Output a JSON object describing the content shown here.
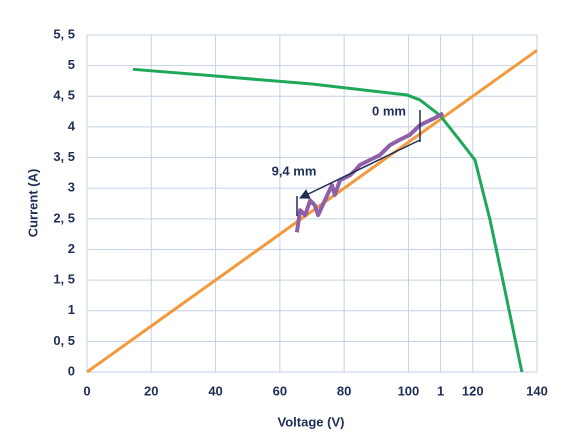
{
  "chart_data": {
    "type": "line",
    "xlabel": "Voltage (V)",
    "ylabel": "Current (A)",
    "xlim": [
      0,
      140
    ],
    "ylim": [
      0,
      5.5
    ],
    "xticks": [
      0,
      20,
      40,
      60,
      80,
      100,
      {
        "value": 110,
        "label": "1"
      },
      120,
      140
    ],
    "yticks": [
      0,
      {
        "value": 0.5,
        "label": "0, 5"
      },
      1,
      {
        "value": 1.5,
        "label": "1, 5"
      },
      2,
      {
        "value": 2.5,
        "label": "2, 5"
      },
      3,
      {
        "value": 3.5,
        "label": "3, 5"
      },
      4,
      {
        "value": 4.5,
        "label": "4, 5"
      },
      5,
      {
        "value": 5.5,
        "label": "5, 5"
      }
    ],
    "grid": true,
    "annotations": [
      "0 mm",
      "9,4 mm"
    ],
    "series": [
      {
        "color": "#f29a3c",
        "x": [
          0,
          140
        ],
        "values": [
          0,
          5.25
        ]
      },
      {
        "color": "#1fa85a",
        "x": [
          14.3,
          40,
          70,
          99.6,
          103.6,
          109.8,
          116,
          120.7,
          125.4,
          130,
          135.3
        ],
        "values": [
          4.94,
          4.83,
          4.7,
          4.52,
          4.44,
          4.19,
          3.78,
          3.46,
          2.48,
          1.34,
          0
        ]
      },
      {
        "color": "#8f5fa8",
        "x": [
          65.3,
          66.3,
          67.9,
          69.4,
          70.9,
          71.9,
          74,
          76.2,
          77.1,
          78.7,
          81.8,
          83.4,
          84.9,
          88,
          91.1,
          94.2,
          97.3,
          100.4,
          103.6,
          108,
          110.8
        ],
        "values": [
          2.28,
          2.64,
          2.56,
          2.8,
          2.72,
          2.56,
          2.8,
          3.05,
          2.89,
          3.13,
          3.21,
          3.29,
          3.38,
          3.46,
          3.54,
          3.7,
          3.79,
          3.87,
          4.03,
          4.14,
          4.22
        ]
      }
    ]
  }
}
